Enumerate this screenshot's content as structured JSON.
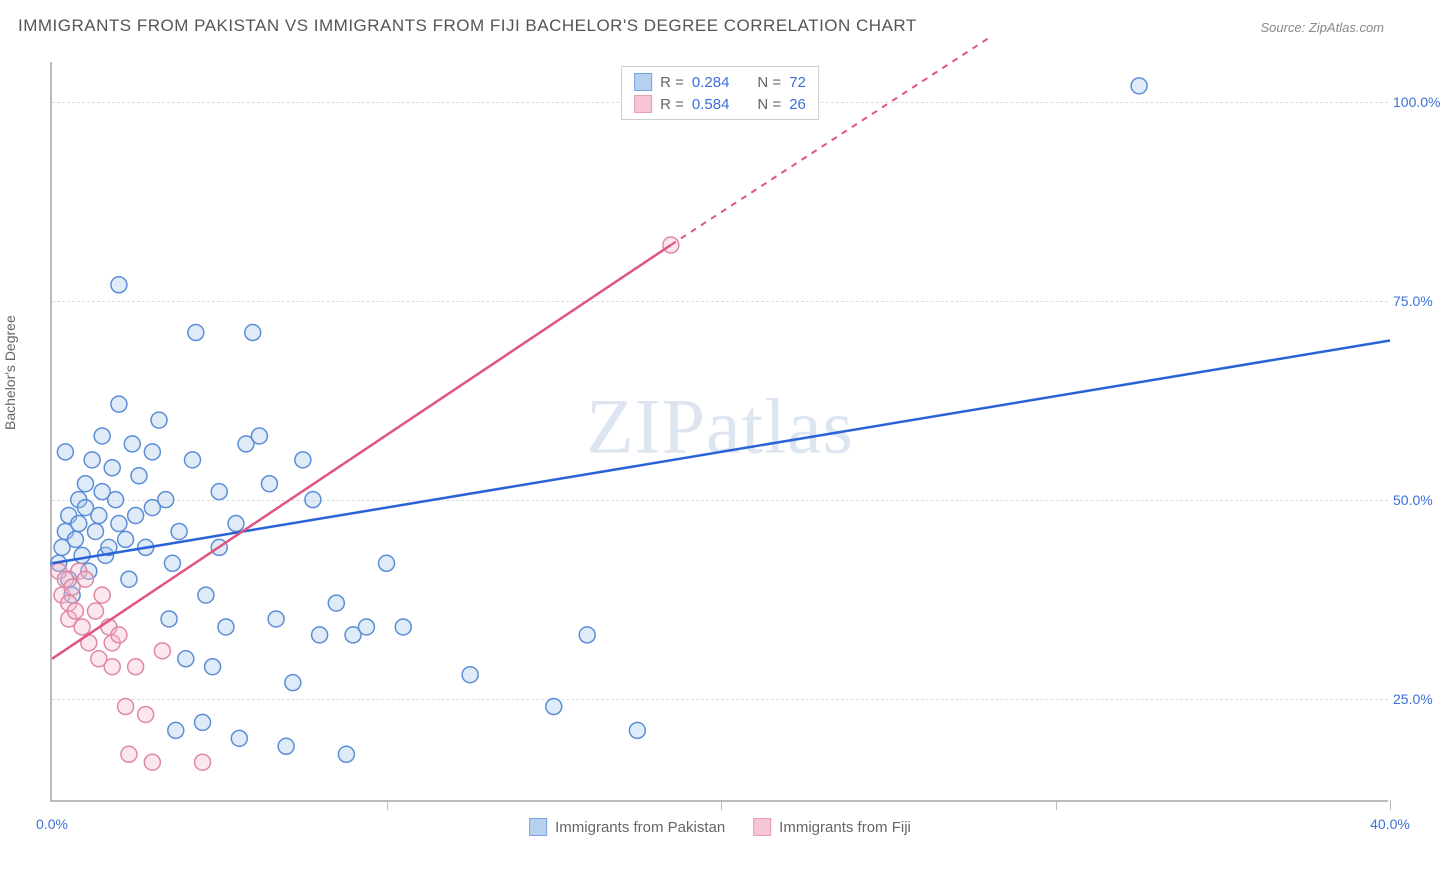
{
  "title": "IMMIGRANTS FROM PAKISTAN VS IMMIGRANTS FROM FIJI BACHELOR'S DEGREE CORRELATION CHART",
  "source": "Source: ZipAtlas.com",
  "ylabel": "Bachelor's Degree",
  "watermark": "ZIPatlas",
  "chart": {
    "type": "scatter",
    "xlim": [
      0,
      40
    ],
    "ylim": [
      12,
      105
    ],
    "x_ticks": [
      0,
      10,
      20,
      30,
      40
    ],
    "x_tick_labels": [
      "0.0%",
      "",
      "",
      "",
      "40.0%"
    ],
    "y_grid": [
      25,
      50,
      75,
      100
    ],
    "y_tick_labels": [
      "25.0%",
      "50.0%",
      "75.0%",
      "100.0%"
    ],
    "grid_color": "#dddddd",
    "axis_color": "#bbbbbb",
    "label_color_x0": "#3b6fd8",
    "label_color_x1": "#3b6fd8",
    "label_color_y": "#3b6fd8",
    "background": "#ffffff",
    "marker_radius": 8,
    "marker_stroke_width": 1.5,
    "marker_fill_opacity": 0.35,
    "series": [
      {
        "name": "Immigrants from Pakistan",
        "color_stroke": "#5b8dd8",
        "color_fill": "#a7c5ec",
        "line_color": "#2a63d6",
        "R": "0.284",
        "N": "72",
        "trend": {
          "x1": 0,
          "y1": 42,
          "x2": 40,
          "y2": 70
        },
        "points": [
          [
            0.2,
            42
          ],
          [
            0.3,
            44
          ],
          [
            0.4,
            46
          ],
          [
            0.5,
            48
          ],
          [
            0.5,
            40
          ],
          [
            0.6,
            38
          ],
          [
            0.7,
            45
          ],
          [
            0.8,
            47
          ],
          [
            0.8,
            50
          ],
          [
            0.9,
            43
          ],
          [
            1.0,
            52
          ],
          [
            1.0,
            49
          ],
          [
            1.1,
            41
          ],
          [
            1.2,
            55
          ],
          [
            1.3,
            46
          ],
          [
            1.4,
            48
          ],
          [
            1.5,
            51
          ],
          [
            1.5,
            58
          ],
          [
            1.6,
            43
          ],
          [
            1.7,
            44
          ],
          [
            1.8,
            54
          ],
          [
            1.9,
            50
          ],
          [
            2.0,
            47
          ],
          [
            2.0,
            62
          ],
          [
            2.2,
            45
          ],
          [
            2.3,
            40
          ],
          [
            2.4,
            57
          ],
          [
            2.5,
            48
          ],
          [
            2.6,
            53
          ],
          [
            2.8,
            44
          ],
          [
            3.0,
            49
          ],
          [
            3.0,
            56
          ],
          [
            3.2,
            60
          ],
          [
            3.4,
            50
          ],
          [
            3.5,
            35
          ],
          [
            3.6,
            42
          ],
          [
            3.8,
            46
          ],
          [
            4.0,
            30
          ],
          [
            4.2,
            55
          ],
          [
            4.3,
            71
          ],
          [
            4.5,
            22
          ],
          [
            4.6,
            38
          ],
          [
            5.0,
            51
          ],
          [
            5.0,
            44
          ],
          [
            5.2,
            34
          ],
          [
            5.5,
            47
          ],
          [
            5.6,
            20
          ],
          [
            5.8,
            57
          ],
          [
            6.0,
            71
          ],
          [
            6.2,
            58
          ],
          [
            6.5,
            52
          ],
          [
            6.7,
            35
          ],
          [
            7.0,
            19
          ],
          [
            7.2,
            27
          ],
          [
            7.5,
            55
          ],
          [
            7.8,
            50
          ],
          [
            8.0,
            33
          ],
          [
            8.5,
            37
          ],
          [
            8.8,
            18
          ],
          [
            9.0,
            33
          ],
          [
            9.4,
            34
          ],
          [
            10.0,
            42
          ],
          [
            10.5,
            34
          ],
          [
            12.5,
            28
          ],
          [
            15.0,
            24
          ],
          [
            16.0,
            33
          ],
          [
            17.5,
            21
          ],
          [
            32.5,
            102
          ],
          [
            3.7,
            21
          ],
          [
            4.8,
            29
          ],
          [
            2.0,
            77
          ],
          [
            0.4,
            56
          ]
        ]
      },
      {
        "name": "Immigrants from Fiji",
        "color_stroke": "#e088a3",
        "color_fill": "#f5b9cb",
        "line_color": "#e05580",
        "R": "0.584",
        "N": "26",
        "trend_solid": {
          "x1": 0,
          "y1": 30,
          "x2": 18.5,
          "y2": 82
        },
        "trend_dash": {
          "x1": 18.5,
          "y1": 82,
          "x2": 28,
          "y2": 108
        },
        "points": [
          [
            0.2,
            41
          ],
          [
            0.3,
            38
          ],
          [
            0.4,
            40
          ],
          [
            0.5,
            37
          ],
          [
            0.5,
            35
          ],
          [
            0.6,
            39
          ],
          [
            0.7,
            36
          ],
          [
            0.8,
            41
          ],
          [
            0.9,
            34
          ],
          [
            1.0,
            40
          ],
          [
            1.1,
            32
          ],
          [
            1.3,
            36
          ],
          [
            1.4,
            30
          ],
          [
            1.5,
            38
          ],
          [
            1.7,
            34
          ],
          [
            1.8,
            32
          ],
          [
            1.8,
            29
          ],
          [
            2.0,
            33
          ],
          [
            2.2,
            24
          ],
          [
            2.3,
            18
          ],
          [
            2.5,
            29
          ],
          [
            2.8,
            23
          ],
          [
            3.0,
            17
          ],
          [
            3.3,
            31
          ],
          [
            4.5,
            17
          ],
          [
            18.5,
            82
          ]
        ]
      }
    ]
  },
  "legend_top": {
    "R_label": "R =",
    "N_label": "N ="
  },
  "legend_bottom": {}
}
